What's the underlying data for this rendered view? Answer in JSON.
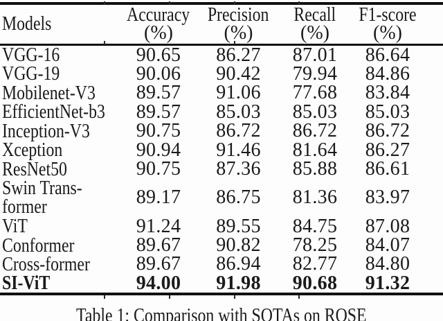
{
  "page": {
    "background": "#fdfdfd",
    "text_color": "#1a1a1a",
    "rule_color": "#101010"
  },
  "table": {
    "header": {
      "models_label": "Models",
      "metric_columns": [
        {
          "label": "Accuracy",
          "unit": "(%)"
        },
        {
          "label": "Precision",
          "unit": "(%)"
        },
        {
          "label": "Recall",
          "unit": "(%)"
        },
        {
          "label": "F1-score",
          "unit": "(%)"
        }
      ]
    },
    "rows": [
      {
        "model_lines": [
          "VGG-16"
        ],
        "values": [
          "90.65",
          "86.27",
          "87.01",
          "86.64"
        ],
        "bold": false
      },
      {
        "model_lines": [
          "VGG-19"
        ],
        "values": [
          "90.06",
          "90.42",
          "79.94",
          "84.86"
        ],
        "bold": false
      },
      {
        "model_lines": [
          "Mobilenet-V3"
        ],
        "values": [
          "89.57",
          "91.06",
          "77.68",
          "83.84"
        ],
        "bold": false
      },
      {
        "model_lines": [
          "EfficientNet-b3"
        ],
        "values": [
          "89.57",
          "85.03",
          "85.03",
          "85.03"
        ],
        "bold": false
      },
      {
        "model_lines": [
          "Inception-V3"
        ],
        "values": [
          "90.75",
          "86.72",
          "86.72",
          "86.72"
        ],
        "bold": false
      },
      {
        "model_lines": [
          "Xception"
        ],
        "values": [
          "90.94",
          "91.46",
          "81.64",
          "86.27"
        ],
        "bold": false
      },
      {
        "model_lines": [
          "ResNet50"
        ],
        "values": [
          "90.75",
          "87.36",
          "85.88",
          "86.61"
        ],
        "bold": false
      },
      {
        "model_lines": [
          "Swin Trans-",
          "former"
        ],
        "values": [
          "89.17",
          "86.75",
          "81.36",
          "83.97"
        ],
        "bold": false
      },
      {
        "model_lines": [
          "ViT"
        ],
        "values": [
          "91.24",
          "89.55",
          "84.75",
          "87.08"
        ],
        "bold": false
      },
      {
        "model_lines": [
          "Conformer"
        ],
        "values": [
          "89.67",
          "90.82",
          "78.25",
          "84.07"
        ],
        "bold": false
      },
      {
        "model_lines": [
          "Cross-former"
        ],
        "values": [
          "89.67",
          "86.94",
          "82.77",
          "84.80"
        ],
        "bold": false
      },
      {
        "model_lines": [
          "SI-ViT"
        ],
        "values": [
          "94.00",
          "91.98",
          "90.68",
          "91.32"
        ],
        "bold": true
      }
    ]
  },
  "caption": "Table 1: Comparison with SOTAs on ROSE"
}
